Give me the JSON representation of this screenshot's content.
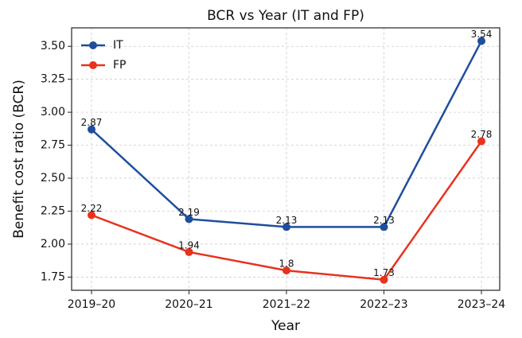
{
  "chart_data": {
    "type": "line",
    "title": "BCR vs Year (IT and FP)",
    "x_label": "Year",
    "y_label": "Benefit cost ratio (BCR)",
    "categories": [
      "2019–20",
      "2020–21",
      "2021–22",
      "2022–23",
      "2023–24"
    ],
    "series": [
      {
        "name": "IT",
        "color": "#1f4e9c",
        "values": [
          2.87,
          2.19,
          2.13,
          2.13,
          3.54
        ]
      },
      {
        "name": "FP",
        "color": "#e8321e",
        "values": [
          2.22,
          1.94,
          1.8,
          1.73,
          2.78
        ]
      }
    ],
    "ylim": [
      1.65,
      3.64
    ],
    "yticks": [
      1.75,
      {
        "value": 2.0,
        "label": "2.00"
      },
      2.25,
      {
        "value": 2.5,
        "label": "2.50"
      },
      2.75,
      {
        "value": 3.0,
        "label": "3.00"
      },
      3.25,
      {
        "value": 3.5,
        "label": "3.50"
      }
    ],
    "grid": true,
    "legend": "upper left"
  }
}
